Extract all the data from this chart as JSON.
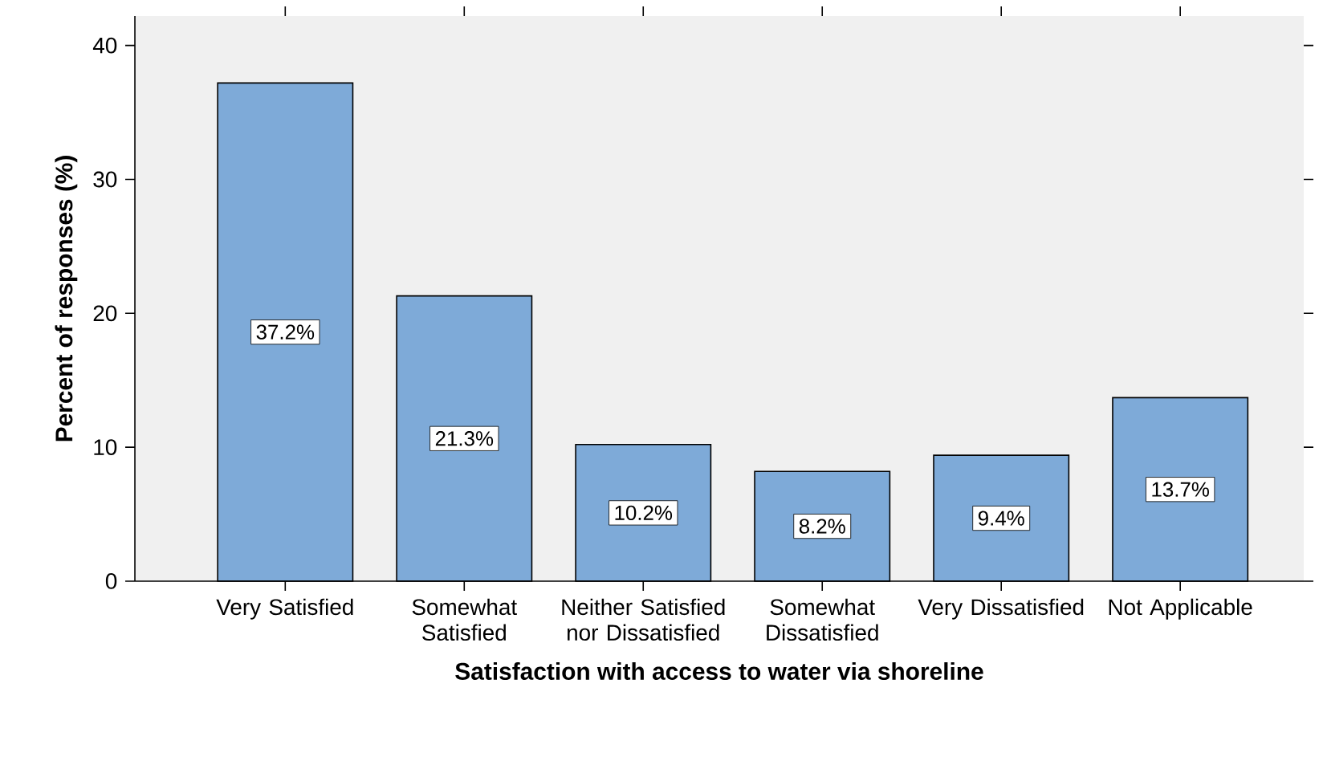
{
  "chart_data": {
    "type": "bar",
    "xlabel": "Satisfaction with access to water via shoreline",
    "ylabel": "Percent of responses (%)",
    "categories": [
      "Very Satisfied",
      "Somewhat Satisfied",
      "Neither Satisfied nor Dissatisfied",
      "Somewhat Dissatisfied",
      "Very Dissatisfied",
      "Not Applicable"
    ],
    "values": [
      37.2,
      21.3,
      10.2,
      8.2,
      9.4,
      13.7
    ],
    "value_labels": [
      "37.2%",
      "21.3%",
      "10.2%",
      "8.2%",
      "9.4%",
      "13.7%"
    ],
    "color": "#7eaad8",
    "ylim": [
      0,
      42.2
    ],
    "yticks": [
      0,
      10,
      20,
      30,
      40
    ]
  }
}
